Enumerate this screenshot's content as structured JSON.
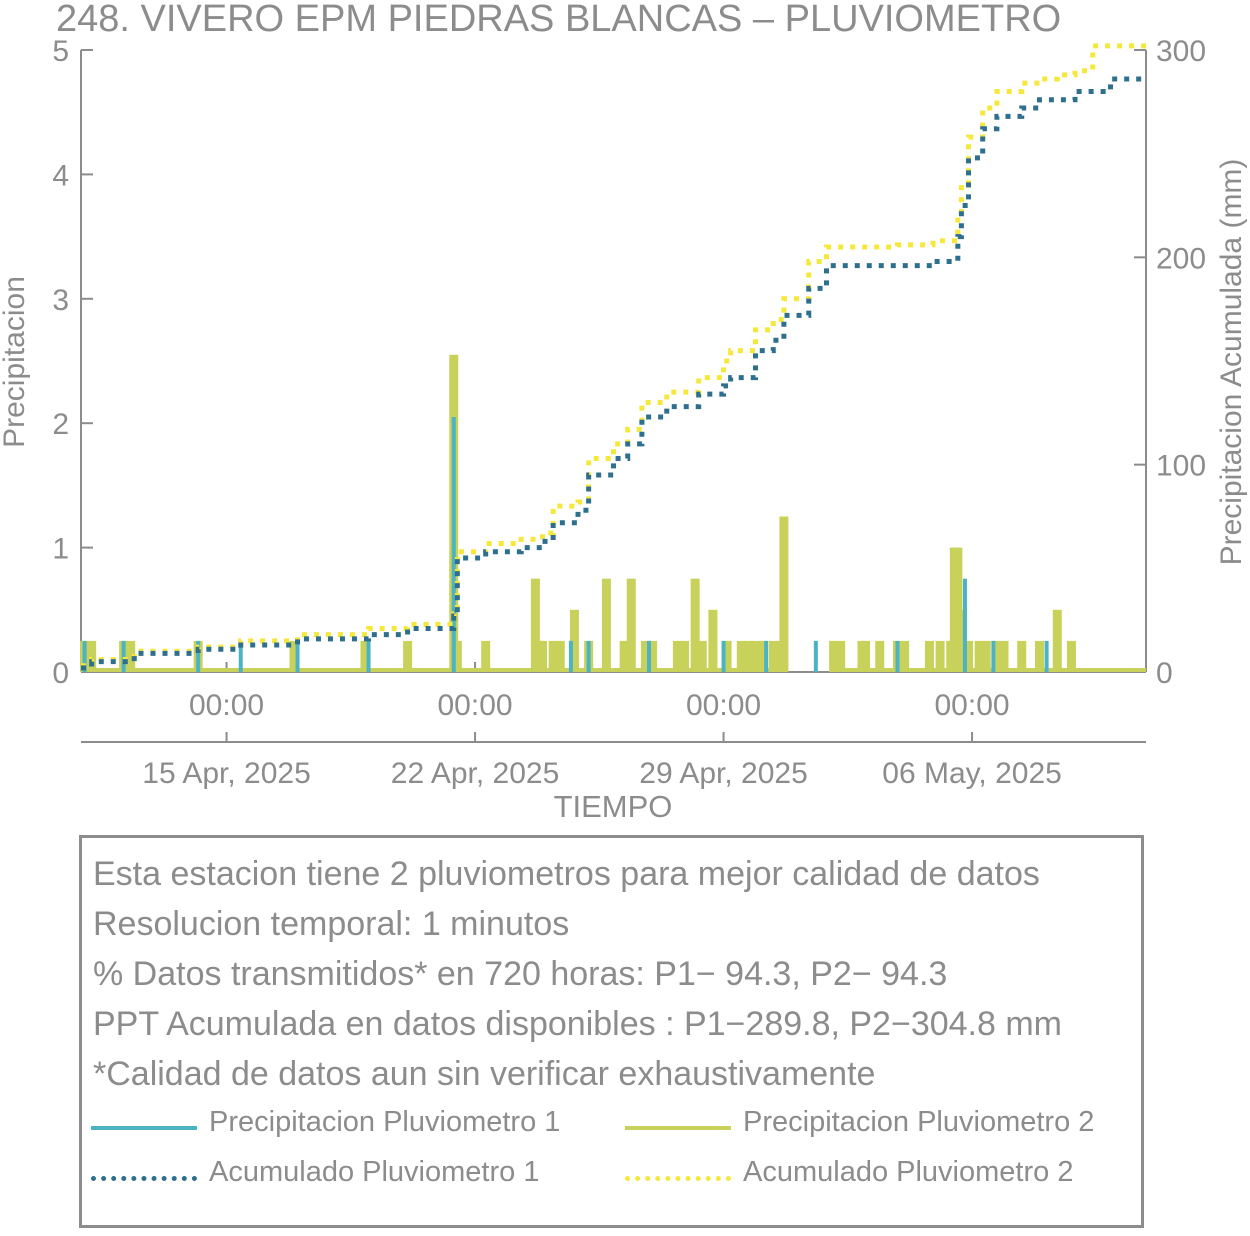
{
  "chart_data": {
    "type": "bar",
    "title": "248. VIVERO EPM PIEDRAS BLANCAS – PLUVIOMETRO",
    "xlabel": "TIEMPO",
    "ylabel": "Precipitacion",
    "y2label": "Precipitacion Acumulada (mm)",
    "xlim_days": [
      0,
      30
    ],
    "ylim": [
      0,
      5
    ],
    "y2lim": [
      0,
      300
    ],
    "yticks": [
      0,
      1,
      2,
      3,
      4,
      5
    ],
    "y2ticks": [
      0,
      100,
      200,
      300
    ],
    "x_tick_time_labels": [
      "00:00",
      "00:00",
      "00:00",
      "00:00"
    ],
    "x_tick_date_labels": [
      "15 Apr, 2025",
      "22 Apr, 2025",
      "29 Apr, 2025",
      "06 May, 2025"
    ],
    "x_ticks_day_offset": [
      4.1,
      11.1,
      18.1,
      25.1
    ],
    "colors": {
      "p1": "#4bb3c4",
      "p2": "#c8d15a",
      "acc1": "#2e6f8e",
      "acc2": "#f5e83a",
      "text": "#8c8c8c"
    },
    "series": [
      {
        "name": "Precipitacion Pluviometro 1",
        "kind": "bar",
        "x": [
          0.1,
          1.2,
          3.3,
          4.5,
          6.1,
          8.1,
          10.5,
          13.8,
          14.3,
          16.0,
          18.1,
          19.3,
          20.7,
          23.0,
          24.9,
          25.7,
          27.2
        ],
        "y": [
          0.25,
          0.25,
          0.25,
          0.25,
          0.25,
          0.25,
          2.05,
          0.25,
          0.25,
          0.25,
          0.25,
          0.25,
          0.25,
          0.25,
          0.75,
          0.25,
          0.25
        ]
      },
      {
        "name": "Precipitacion Pluviometro 2",
        "kind": "bar",
        "x": [
          0.1,
          0.3,
          1.2,
          1.4,
          3.3,
          6.0,
          8.0,
          9.2,
          10.5,
          10.6,
          11.4,
          12.8,
          12.9,
          13.0,
          13.3,
          13.5,
          13.9,
          14.3,
          14.8,
          15.3,
          15.5,
          15.9,
          16.1,
          16.8,
          17.0,
          17.3,
          17.5,
          17.8,
          18.2,
          18.6,
          18.8,
          19.0,
          19.2,
          19.5,
          19.7,
          19.8,
          21.2,
          21.4,
          22.0,
          22.1,
          22.5,
          23.0,
          23.2,
          23.9,
          24.2,
          24.5,
          24.6,
          24.7,
          24.8,
          25.0,
          25.3,
          25.5,
          25.8,
          26.0,
          26.5,
          27.0,
          27.5,
          27.9
        ],
        "y": [
          0.25,
          0.25,
          0.25,
          0.25,
          0.25,
          0.25,
          0.25,
          0.25,
          2.55,
          0.25,
          0.25,
          0.75,
          0.25,
          0.25,
          0.25,
          0.25,
          0.5,
          0.25,
          0.75,
          0.25,
          0.75,
          0.25,
          0.25,
          0.25,
          0.25,
          0.75,
          0.25,
          0.5,
          0.25,
          0.25,
          0.25,
          0.25,
          0.25,
          0.25,
          0.25,
          1.25,
          0.25,
          0.25,
          0.25,
          0.25,
          0.25,
          0.25,
          0.25,
          0.25,
          0.25,
          0.25,
          1.0,
          1.0,
          0.5,
          0.25,
          0.25,
          0.25,
          0.25,
          0.25,
          0.25,
          0.25,
          0.5,
          0.25
        ]
      },
      {
        "name": "Acumulado Pluviometro 1",
        "kind": "step-dotted",
        "x": [
          0,
          0.3,
          1.5,
          3.3,
          4.5,
          6.1,
          8.1,
          9.2,
          10.5,
          10.6,
          11.4,
          12.4,
          13.0,
          13.3,
          14.0,
          14.3,
          15.0,
          15.4,
          15.8,
          16.5,
          17.4,
          18.1,
          18.3,
          19.0,
          19.5,
          19.8,
          20.5,
          21.0,
          22.0,
          23.0,
          24.0,
          24.7,
          24.8,
          25.0,
          25.4,
          25.8,
          26.5,
          27.0,
          27.5,
          28.0,
          29.0,
          30.0
        ],
        "y": [
          2,
          5,
          9,
          11,
          13,
          16,
          18,
          21,
          27,
          55,
          58,
          60,
          63,
          72,
          78,
          95,
          103,
          110,
          123,
          128,
          134,
          138,
          142,
          155,
          160,
          172,
          185,
          196,
          196,
          196,
          198,
          210,
          225,
          248,
          262,
          268,
          272,
          276,
          276,
          280,
          286,
          286
        ]
      },
      {
        "name": "Acumulado Pluviometro 2",
        "kind": "step-dotted",
        "x": [
          0,
          0.3,
          1.5,
          3.3,
          4.5,
          6.1,
          8.1,
          9.2,
          10.5,
          10.6,
          11.4,
          12.4,
          13.0,
          13.3,
          14.0,
          14.3,
          15.0,
          15.4,
          15.8,
          16.5,
          17.4,
          18.1,
          18.3,
          19.0,
          19.5,
          19.8,
          20.5,
          21.0,
          22.0,
          23.0,
          24.0,
          24.7,
          24.8,
          25.0,
          25.4,
          25.8,
          26.5,
          27.0,
          27.5,
          28.0,
          28.5,
          30.0
        ],
        "y": [
          3,
          6,
          10,
          12,
          15,
          18,
          21,
          23,
          28,
          58,
          62,
          64,
          67,
          80,
          82,
          103,
          110,
          117,
          130,
          135,
          142,
          150,
          155,
          165,
          170,
          180,
          198,
          205,
          205,
          206,
          208,
          220,
          235,
          258,
          272,
          280,
          284,
          286,
          288,
          290,
          302,
          302
        ]
      }
    ],
    "legend": {
      "position": "bottom",
      "items": [
        {
          "label": "Precipitacion Pluviometro 1",
          "color": "#4bb3c4",
          "style": "solid"
        },
        {
          "label": "Precipitacion Pluviometro 2",
          "color": "#c8d15a",
          "style": "solid"
        },
        {
          "label": "Acumulado Pluviometro 1",
          "color": "#2e6f8e",
          "style": "dotted"
        },
        {
          "label": "Acumulado Pluviometro 2",
          "color": "#f5e83a",
          "style": "dotted"
        }
      ]
    },
    "grid": false
  },
  "info": {
    "line1": "Esta estacion tiene 2 pluviometros para mejor calidad de datos",
    "line2": "Resolucion temporal: 1 minutos",
    "line3": "% Datos transmitidos* en 720 horas: P1− 94.3, P2− 94.3",
    "line4": "PPT Acumulada en datos disponibles : P1−289.8, P2−304.8 mm",
    "line5": "*Calidad de datos aun sin verificar exhaustivamente"
  }
}
